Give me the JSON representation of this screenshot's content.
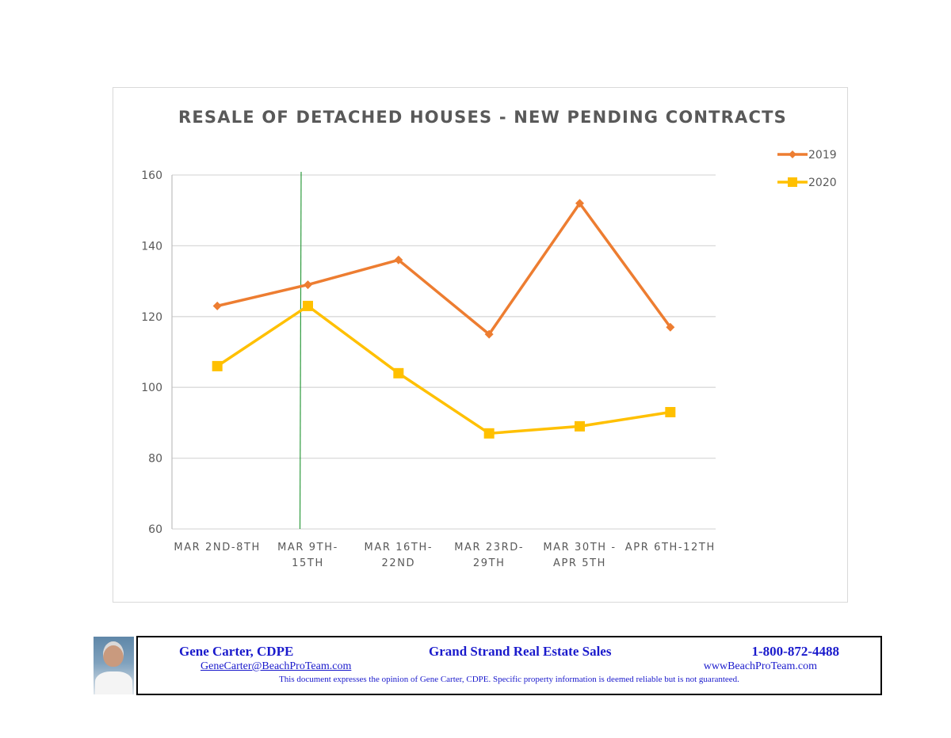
{
  "chart_data": {
    "type": "line",
    "title": "RESALE OF DETACHED HOUSES - NEW PENDING CONTRACTS",
    "categories": [
      [
        "MAR 2ND-8TH"
      ],
      [
        "MAR 9TH-",
        "15TH"
      ],
      [
        "MAR 16TH-",
        "22ND"
      ],
      [
        "MAR 23RD-",
        "29TH"
      ],
      [
        "MAR 30TH -",
        "APR 5TH"
      ],
      [
        "APR 6TH-12TH"
      ]
    ],
    "series": [
      {
        "name": "2019",
        "color": "#ed7d31",
        "marker": "diamond",
        "values": [
          123,
          129,
          136,
          115,
          152,
          117
        ]
      },
      {
        "name": "2020",
        "color": "#ffc000",
        "marker": "square",
        "values": [
          106,
          123,
          104,
          87,
          89,
          93
        ]
      }
    ],
    "ylim": [
      60,
      160
    ],
    "yticks": [
      60,
      80,
      100,
      120,
      140,
      160
    ],
    "grid": true,
    "legend_position": "top-right",
    "marker_line": {
      "color": "#2e9b3e",
      "category_index": 1
    }
  },
  "footer": {
    "name": "Gene Carter, CDPE",
    "company": "Grand Strand Real Estate Sales",
    "phone": "1-800-872-4488",
    "email": "GeneCarter@BeachProTeam.com",
    "website": "wwwBeachProTeam.com",
    "disclaimer": "This document expresses the opinion of Gene Carter, CDPE.  Specific property information is deemed reliable but is not guaranteed."
  }
}
